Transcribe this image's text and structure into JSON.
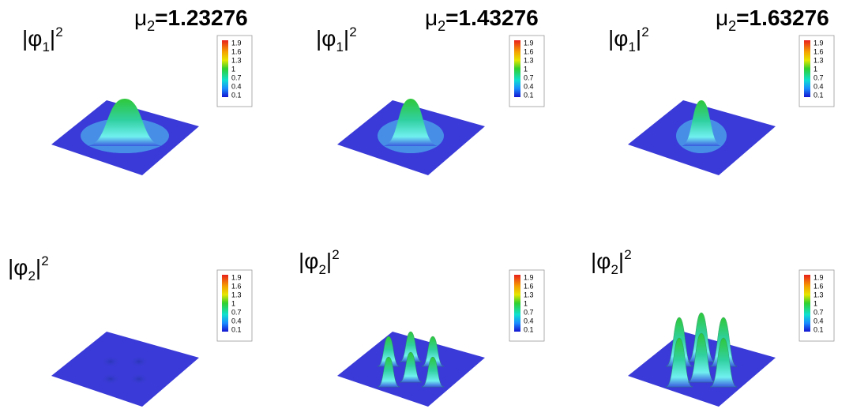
{
  "columns": [
    {
      "title": {
        "base": "μ",
        "sub": "2",
        "rest": "=1.23276"
      }
    },
    {
      "title": {
        "base": "μ",
        "sub": "2",
        "rest": "=1.43276"
      }
    },
    {
      "title": {
        "base": "μ",
        "sub": "2",
        "rest": "=1.63276"
      }
    }
  ],
  "rows": [
    {
      "label": {
        "open": "|φ",
        "sub": "1",
        "close": "|",
        "sup": "2"
      }
    },
    {
      "label": {
        "open": "|φ",
        "sub": "2",
        "close": "|",
        "sup": "2"
      }
    }
  ],
  "colorbar": {
    "ticks": [
      "1.9",
      "1.6",
      "1.3",
      "1",
      "0.7",
      "0.4",
      "0.1"
    ]
  }
}
